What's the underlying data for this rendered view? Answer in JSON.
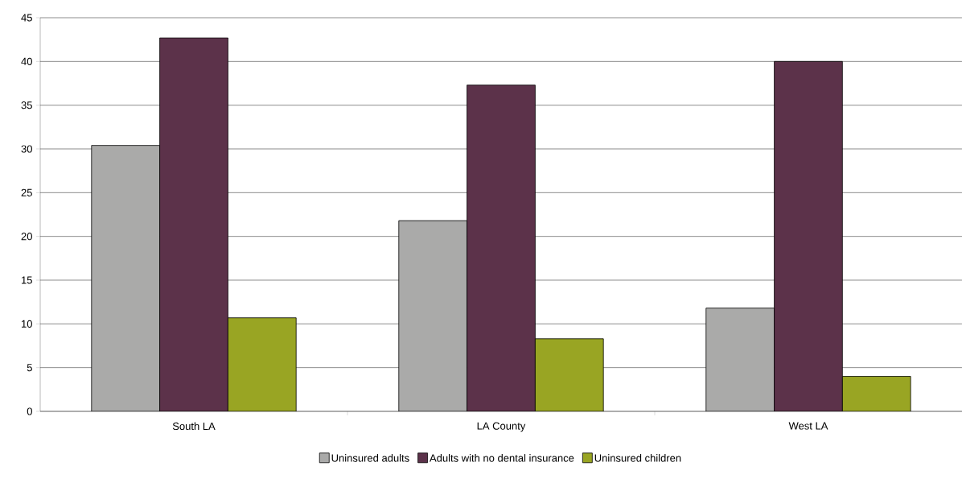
{
  "chart_data": {
    "type": "bar",
    "categories": [
      "South LA",
      "LA County",
      "West LA"
    ],
    "series": [
      {
        "name": "Uninsured adults",
        "color": "#aaaaa9",
        "values": [
          30.4,
          21.8,
          11.8
        ]
      },
      {
        "name": "Adults with no dental insurance",
        "color": "#5c324a",
        "values": [
          42.7,
          37.3,
          40.0
        ]
      },
      {
        "name": "Uninsured children",
        "color": "#99a523",
        "values": [
          10.7,
          8.3,
          4.0
        ]
      }
    ],
    "ylim": [
      0,
      45
    ],
    "yticks": [
      0,
      5,
      10,
      15,
      20,
      25,
      30,
      35,
      40,
      45
    ],
    "grid": "y",
    "legend": "bottom"
  }
}
